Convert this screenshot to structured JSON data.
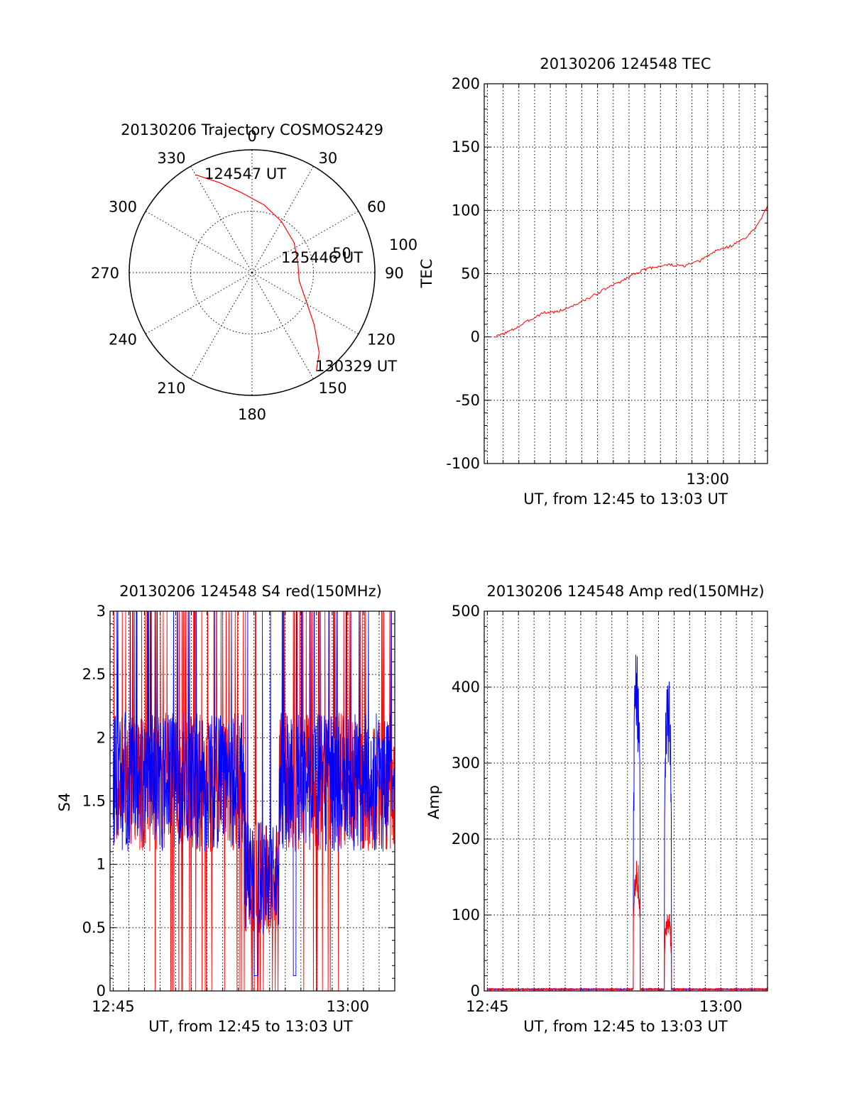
{
  "chart_data": [
    {
      "type": "polar",
      "title": "20130206 Trajectory COSMOS2429",
      "angle_labels": [
        "0",
        "30",
        "60",
        "90",
        "120",
        "150",
        "180",
        "210",
        "240",
        "270",
        "300",
        "330"
      ],
      "radial_labels": [
        "50",
        "100"
      ],
      "series_color": "#ff0000",
      "trajectory": [
        {
          "az": 330,
          "elev_rho": 92
        },
        {
          "az": 340,
          "elev_rho": 78
        },
        {
          "az": 352,
          "elev_rho": 66
        },
        {
          "az": 10,
          "elev_rho": 56
        },
        {
          "az": 30,
          "elev_rho": 48
        },
        {
          "az": 55,
          "elev_rho": 42
        },
        {
          "az": 80,
          "elev_rho": 38
        },
        {
          "az": 100,
          "elev_rho": 39
        },
        {
          "az": 118,
          "elev_rho": 50
        },
        {
          "az": 130,
          "elev_rho": 66
        },
        {
          "az": 140,
          "elev_rho": 85
        },
        {
          "az": 147,
          "elev_rho": 96
        }
      ],
      "annotations": [
        "124547 UT",
        "125446 UT",
        "130329 UT"
      ]
    },
    {
      "type": "line",
      "title": "20130206 124548 TEC",
      "xlabel": "UT, from 12:45 to 13:03 UT",
      "ylabel": "TEC",
      "x_range_minutes": [
        45.8,
        63.8
      ],
      "ylim": [
        -100,
        200
      ],
      "yticks": [
        "-100",
        "-50",
        "0",
        "50",
        "100",
        "150",
        "200"
      ],
      "xticks": [
        {
          "minute": 60,
          "label": "13:00"
        }
      ],
      "series": [
        {
          "color": "#ff0000",
          "x": [
            46.5,
            47.5,
            48.5,
            49.5,
            50.5,
            51.5,
            52.5,
            53.5,
            54.5,
            55.5,
            56.5,
            57.5,
            58.5,
            59.5,
            60.5,
            61.5,
            62.5,
            63.0,
            63.5,
            63.8
          ],
          "values": [
            0,
            5,
            12,
            19,
            20,
            25,
            31,
            38,
            44,
            51,
            55,
            57,
            56,
            60,
            68,
            72,
            79,
            86,
            96,
            103
          ]
        }
      ]
    },
    {
      "type": "line",
      "title": "20130206 124548 S4 red(150MHz)",
      "xlabel": "UT, from 12:45 to 13:03 UT",
      "ylabel": "S4",
      "x_range_minutes": [
        44.8,
        63.0
      ],
      "ylim": [
        0,
        3
      ],
      "yticks": [
        "0",
        "0.5",
        "1",
        "1.5",
        "2",
        "2.5",
        "3"
      ],
      "xticks": [
        {
          "minute": 45,
          "label": "12:45"
        },
        {
          "minute": 60,
          "label": "13:00"
        }
      ],
      "series": [
        {
          "color": "#ff0000",
          "noise_seed": 7,
          "x_start": 45.0,
          "x_end": 63.0
        },
        {
          "color": "#0000ff",
          "noise_seed": 13,
          "x_start": 45.0,
          "x_end": 63.0
        }
      ]
    },
    {
      "type": "line",
      "title": "20130206 124548 Amp red(150MHz)",
      "xlabel": "UT, from 12:45 to 13:03 UT",
      "ylabel": "Amp",
      "x_range_minutes": [
        44.8,
        63.0
      ],
      "ylim": [
        0,
        500
      ],
      "yticks": [
        "0",
        "100",
        "200",
        "300",
        "400",
        "500"
      ],
      "xticks": [
        {
          "minute": 45,
          "label": "12:45"
        },
        {
          "minute": 60,
          "label": "13:00"
        }
      ],
      "series": [
        {
          "color": "#0000ff",
          "peaks": [
            {
              "x": 54.6,
              "y": 448
            },
            {
              "x": 56.6,
              "y": 428
            }
          ]
        },
        {
          "color": "#ff0000",
          "peaks": [
            {
              "x": 54.6,
              "y": 175
            },
            {
              "x": 56.6,
              "y": 108
            }
          ]
        }
      ]
    }
  ]
}
